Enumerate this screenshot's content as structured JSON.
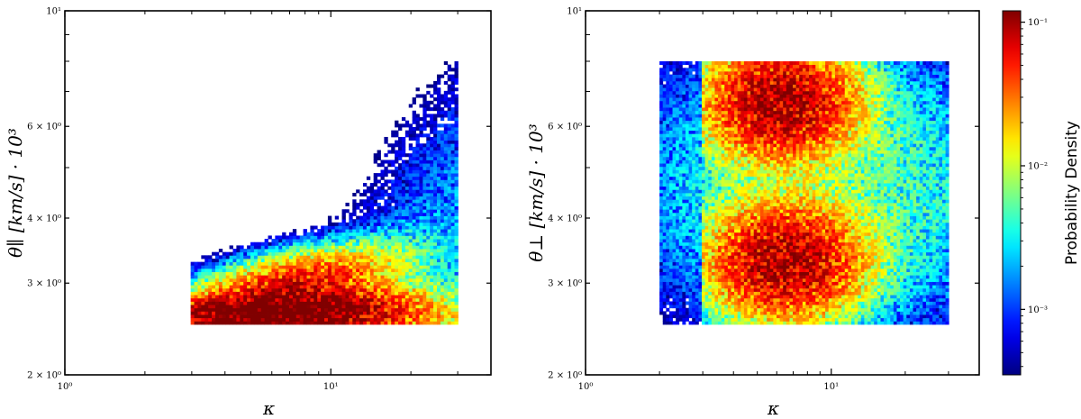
{
  "chart_data": [
    {
      "type": "heatmap",
      "subtype": "2d-histogram",
      "xlabel": "κ",
      "ylabel": "θ∥ [km/s] · 10³",
      "xscale": "log",
      "yscale": "log",
      "xlim": [
        1,
        40
      ],
      "ylim": [
        2,
        10
      ],
      "x_ticks": [
        {
          "value": 1,
          "label": "10⁰"
        },
        {
          "value": 10,
          "label": "10¹"
        }
      ],
      "y_ticks": [
        {
          "value": 2,
          "label": "2 × 10⁰"
        },
        {
          "value": 3,
          "label": "3 × 10⁰"
        },
        {
          "value": 4,
          "label": "4 × 10⁰"
        },
        {
          "value": 6,
          "label": "6 × 10⁰"
        },
        {
          "value": 10,
          "label": "10¹"
        }
      ],
      "density_clusters": [
        {
          "kappa_center": 6.5,
          "theta_center": 2.85,
          "kappa_spread": 0.22,
          "theta_spread": 0.035,
          "peak_density": 0.08,
          "kappa_slope": 0.12,
          "extent": [
            3,
            30
          ]
        },
        {
          "kappa_center": 7.0,
          "theta_center": 2.6,
          "kappa_spread": 0.3,
          "theta_spread": 0.02,
          "peak_density": 0.12,
          "kappa_slope": 0.0,
          "extent": [
            3,
            30
          ]
        },
        {
          "kappa_center": 7.5,
          "theta_center": 2.68,
          "kappa_spread": 0.25,
          "theta_spread": 0.018,
          "peak_density": 0.07,
          "kappa_slope": 0.05,
          "extent": [
            3,
            30
          ]
        },
        {
          "kappa_center": 25.0,
          "theta_center": 3.3,
          "kappa_spread": 0.3,
          "theta_spread": 0.18,
          "peak_density": 0.002,
          "kappa_slope": 0.6,
          "extent": [
            8,
            30
          ]
        }
      ],
      "value_range": [
        0.0004,
        0.12
      ]
    },
    {
      "type": "heatmap",
      "subtype": "2d-histogram",
      "xlabel": "κ",
      "ylabel": "θ⊥ [km/s] · 10³",
      "xscale": "log",
      "yscale": "log",
      "xlim": [
        1,
        40
      ],
      "ylim": [
        2,
        10
      ],
      "x_ticks": [
        {
          "value": 1,
          "label": "10⁰"
        },
        {
          "value": 10,
          "label": "10¹"
        }
      ],
      "y_ticks": [
        {
          "value": 2,
          "label": "2 × 10⁰"
        },
        {
          "value": 3,
          "label": "3 × 10⁰"
        },
        {
          "value": 4,
          "label": "4 × 10⁰"
        },
        {
          "value": 6,
          "label": "6 × 10⁰"
        },
        {
          "value": 10,
          "label": "10¹"
        }
      ],
      "density_clusters": [
        {
          "kappa_center": 6.2,
          "theta_center": 6.7,
          "kappa_spread": 0.17,
          "theta_spread": 0.06,
          "peak_density": 0.1,
          "kappa_slope": 0.0,
          "extent": [
            3,
            30
          ]
        },
        {
          "kappa_center": 6.5,
          "theta_center": 3.3,
          "kappa_spread": 0.17,
          "theta_spread": 0.06,
          "peak_density": 0.1,
          "kappa_slope": 0.0,
          "extent": [
            3,
            30
          ]
        },
        {
          "kappa_center": 10.0,
          "theta_center": 4.6,
          "kappa_spread": 0.45,
          "theta_spread": 0.15,
          "peak_density": 0.006,
          "kappa_slope": 0.0,
          "extent": [
            2,
            30
          ]
        }
      ],
      "value_range": [
        0.0004,
        0.12
      ]
    }
  ],
  "colorbar": {
    "label": "Probability Density",
    "scale": "log",
    "range": [
      0.00035,
      0.12
    ],
    "colormap": "jet",
    "ticks": [
      {
        "value": 0.1,
        "label": "10⁻¹"
      },
      {
        "value": 0.01,
        "label": "10⁻²"
      },
      {
        "value": 0.001,
        "label": "10⁻³"
      }
    ]
  },
  "colors": {
    "axis": "#000000",
    "background": "#ffffff"
  }
}
